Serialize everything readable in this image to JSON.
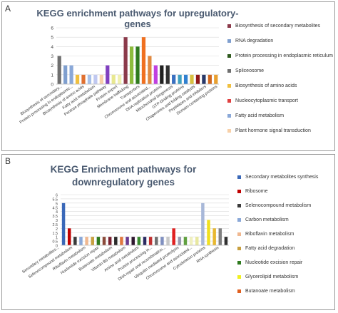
{
  "figure": {
    "panel_a_letter": "A",
    "panel_b_letter": "B"
  },
  "chart_data": [
    {
      "type": "bar",
      "title": "KEGG enrichment pathways for upregulatory-genes",
      "xlabel": "",
      "ylabel": "",
      "ylim": [
        0,
        6
      ],
      "yticks": [
        0,
        1,
        2,
        3,
        4,
        5,
        6
      ],
      "grid": true,
      "legend_position": "right",
      "tick_labels": [
        "Biosynthesis of secondary...",
        "Protein processing in endoplasmic...",
        "Biosynthesis of amino acids",
        "Fatty acid metabolism",
        "Pentose phosphate pathway",
        "Protein export",
        "Membrane trafficking",
        "Transporters",
        "Chromosome and associated...",
        "DNA replication proteins",
        "Mitochondrial biogenesis",
        "GTP-binding proteins",
        "Chaperones and folding catalysts",
        "Peptidases and inhibitors",
        "Domain-containing proteins"
      ],
      "bars": [
        {
          "value": 3,
          "color": "#6f6f6f"
        },
        {
          "value": 2,
          "color": "#7f9fcf"
        },
        {
          "value": 2,
          "color": "#8aa8d8"
        },
        {
          "value": 1,
          "color": "#f0c040"
        },
        {
          "value": 1,
          "color": "#e07030"
        },
        {
          "value": 1,
          "color": "#a8c0e8"
        },
        {
          "value": 1,
          "color": "#c0c8f0"
        },
        {
          "value": 1,
          "color": "#f8d0a8"
        },
        {
          "value": 2,
          "color": "#8040c0"
        },
        {
          "value": 1,
          "color": "#e8e890"
        },
        {
          "value": 1,
          "color": "#f0f0b0"
        },
        {
          "value": 5,
          "color": "#8b3a4a"
        },
        {
          "value": 4,
          "color": "#8cbc3c"
        },
        {
          "value": 4,
          "color": "#2e7a1e"
        },
        {
          "value": 5,
          "color": "#f07020"
        },
        {
          "value": 3,
          "color": "#e08840"
        },
        {
          "value": 2,
          "color": "#c040e0"
        },
        {
          "value": 2,
          "color": "#202020"
        },
        {
          "value": 2,
          "color": "#303030"
        },
        {
          "value": 1,
          "color": "#3a70c0"
        },
        {
          "value": 1,
          "color": "#40a0c0"
        },
        {
          "value": 1,
          "color": "#3080d0"
        },
        {
          "value": 1,
          "color": "#d8c040"
        },
        {
          "value": 1,
          "color": "#901818"
        },
        {
          "value": 1,
          "color": "#283868"
        },
        {
          "value": 1,
          "color": "#d06820"
        },
        {
          "value": 1,
          "color": "#e8a030"
        }
      ],
      "legend": [
        {
          "label": "Biosynthesis of secondary metabolites",
          "color": "#8b3a4a"
        },
        {
          "label": "RNA degradation",
          "color": "#7f9fcf"
        },
        {
          "label": "Protein processing in endoplasmic reticulum",
          "color": "#2e5a1e"
        },
        {
          "label": "Spliceosome",
          "color": "#6f6f6f"
        },
        {
          "label": "Biosynthesis of amino acids",
          "color": "#f0c040"
        },
        {
          "label": "Nucleocytoplasmic transport",
          "color": "#e04040"
        },
        {
          "label": "Fatty acid metabolism",
          "color": "#8aa8d8"
        },
        {
          "label": "Plant hormone signal transduction",
          "color": "#f8d0a8"
        }
      ]
    },
    {
      "type": "bar",
      "title": "KEGG Enrichment pathways for downregulatory genes",
      "xlabel": "",
      "ylabel": "",
      "ylim": [
        0,
        6
      ],
      "yticks": [
        0,
        0.5,
        1,
        1.5,
        2,
        2.5,
        3,
        3.5,
        4,
        4.5,
        5,
        5.5,
        6
      ],
      "grid": true,
      "legend_position": "right",
      "tick_labels": [
        "Secondary metabolites...",
        "Selenocompound metabolism",
        "Riboflavin metabolism",
        "Nucleotide excision repair",
        "Butanoate metabolism",
        "Vitamin B6 metabolism",
        "Amino acid metabolism",
        "Protein processing in...",
        "DNA repair and recombination...",
        "Ubiquitin mediated proteolysis",
        "Chromosome and associated...",
        "Cytoskeleton proteins",
        "RNA synthesis"
      ],
      "bars": [
        {
          "value": 5,
          "color": "#3a68b8"
        },
        {
          "value": 2,
          "color": "#c00000"
        },
        {
          "value": 1,
          "color": "#3a3a3a"
        },
        {
          "value": 1,
          "color": "#8aa8d8"
        },
        {
          "value": 1,
          "color": "#f0b890"
        },
        {
          "value": 1,
          "color": "#c8a040"
        },
        {
          "value": 1,
          "color": "#2e7a1e"
        },
        {
          "value": 1,
          "color": "#8b4a3a"
        },
        {
          "value": 1,
          "color": "#7a2030"
        },
        {
          "value": 1,
          "color": "#2a2a2a"
        },
        {
          "value": 1,
          "color": "#e07840"
        },
        {
          "value": 1,
          "color": "#6a3a90"
        },
        {
          "value": 1,
          "color": "#301830"
        },
        {
          "value": 1,
          "color": "#3a8a30"
        },
        {
          "value": 1,
          "color": "#2a2a60"
        },
        {
          "value": 1,
          "color": "#c03030"
        },
        {
          "value": 1,
          "color": "#707070"
        },
        {
          "value": 1,
          "color": "#8090c0"
        },
        {
          "value": 1,
          "color": "#c8c8c8"
        },
        {
          "value": 2,
          "color": "#e02020"
        },
        {
          "value": 1,
          "color": "#9a9ab0"
        },
        {
          "value": 1,
          "color": "#60a040"
        },
        {
          "value": 1,
          "color": "#f0f0c0"
        },
        {
          "value": 1,
          "color": "#e8e8a0"
        },
        {
          "value": 5,
          "color": "#a8b8d8"
        },
        {
          "value": 3,
          "color": "#f0e020"
        },
        {
          "value": 2,
          "color": "#e8b830"
        },
        {
          "value": 2,
          "color": "#808080"
        },
        {
          "value": 1,
          "color": "#303030"
        }
      ],
      "legend": [
        {
          "label": "Secondary metabolites synthesis",
          "color": "#3a68b8"
        },
        {
          "label": "Ribosome",
          "color": "#c00000"
        },
        {
          "label": "Selenocompound metabolism",
          "color": "#3a3a3a"
        },
        {
          "label": "Carbon metabolism",
          "color": "#8aa8d8"
        },
        {
          "label": "Riboflavin metabolism",
          "color": "#f0b890"
        },
        {
          "label": "Fatty acid degradation",
          "color": "#c8a040"
        },
        {
          "label": "Nucleotide excision repair",
          "color": "#2e7a1e"
        },
        {
          "label": "Glycerolipid metabolism",
          "color": "#f0f020"
        },
        {
          "label": "Butanoate metabolism",
          "color": "#e06020"
        }
      ]
    }
  ]
}
